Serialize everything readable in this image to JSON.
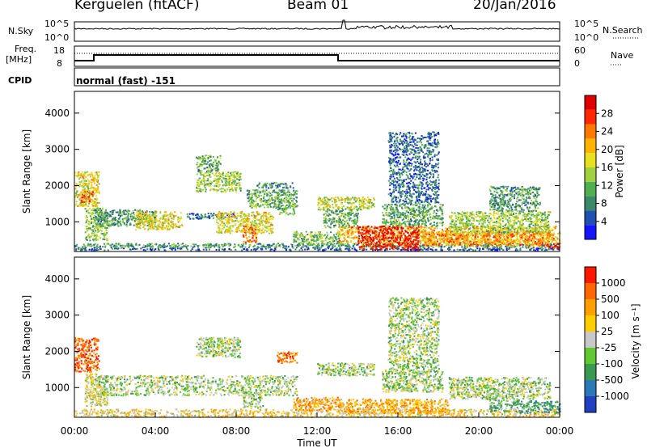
{
  "header": {
    "station": "Kerguelen (fitACF)",
    "beam": "Beam 01",
    "date": "20/Jan/2016"
  },
  "panels": {
    "sky_label": "N.Sky",
    "sky_ticks": [
      "10^5",
      "10^0"
    ],
    "search_label": "N.Search",
    "search_ticks": [
      "10^5",
      "10^0"
    ],
    "freq_label_1": "Freq.",
    "freq_label_2": "[MHz]",
    "freq_ticks": [
      "18",
      "8"
    ],
    "nave_label": "Nave",
    "nave_ticks": [
      "60",
      "0"
    ],
    "cpid_label": "CPID",
    "cpid_text": "normal (fast) -151"
  },
  "chart_data": [
    {
      "type": "heatmap",
      "name": "power",
      "ylabel": "Slant Range [km]",
      "yticks": [
        1000,
        2000,
        3000,
        4000
      ],
      "ylim": [
        180,
        4600
      ],
      "xlim": [
        0,
        24
      ],
      "colorbar": {
        "label": "Power [dB]",
        "ticks": [
          "4",
          "8",
          "12",
          "16",
          "20",
          "24",
          "28"
        ],
        "colors": [
          "#1414ff",
          "#2050b0",
          "#3a8a6a",
          "#50b050",
          "#a0d040",
          "#e8e020",
          "#ffb400",
          "#ff7800",
          "#ff2800",
          "#e00000"
        ]
      },
      "regions": [
        {
          "t0": 0.0,
          "t1": 24.0,
          "r0": 230,
          "r1": 290,
          "level": 0.15
        },
        {
          "t0": 0.0,
          "t1": 24.0,
          "r0": 300,
          "r1": 420,
          "level": 0.3
        },
        {
          "t0": 0.0,
          "t1": 1.2,
          "r0": 1450,
          "r1": 2400,
          "level": 0.55
        },
        {
          "t0": 0.3,
          "t1": 0.9,
          "r0": 1550,
          "r1": 1850,
          "level": 0.8
        },
        {
          "t0": 0.5,
          "t1": 1.6,
          "r0": 500,
          "r1": 1400,
          "level": 0.4
        },
        {
          "t0": 1.0,
          "t1": 4.0,
          "r0": 900,
          "r1": 1350,
          "level": 0.3
        },
        {
          "t0": 3.0,
          "t1": 5.3,
          "r0": 800,
          "r1": 1300,
          "level": 0.55
        },
        {
          "t0": 5.5,
          "t1": 8.0,
          "r0": 1100,
          "r1": 1250,
          "level": 0.2
        },
        {
          "t0": 6.0,
          "t1": 8.2,
          "r0": 1850,
          "r1": 2400,
          "level": 0.45
        },
        {
          "t0": 6.0,
          "t1": 7.2,
          "r0": 2400,
          "r1": 2850,
          "level": 0.35
        },
        {
          "t0": 7.0,
          "t1": 9.8,
          "r0": 700,
          "r1": 1300,
          "level": 0.55
        },
        {
          "t0": 8.3,
          "t1": 9.0,
          "r0": 450,
          "r1": 900,
          "level": 0.75
        },
        {
          "t0": 8.5,
          "t1": 10.2,
          "r0": 1400,
          "r1": 1900,
          "level": 0.35
        },
        {
          "t0": 9.0,
          "t1": 10.8,
          "r0": 1950,
          "r1": 2100,
          "level": 0.25
        },
        {
          "t0": 10.0,
          "t1": 11.0,
          "r0": 1200,
          "r1": 1900,
          "level": 0.35
        },
        {
          "t0": 10.8,
          "t1": 13.2,
          "r0": 380,
          "r1": 750,
          "level": 0.4
        },
        {
          "t0": 12.0,
          "t1": 14.8,
          "r0": 1350,
          "r1": 1700,
          "level": 0.5
        },
        {
          "t0": 12.3,
          "t1": 14.0,
          "r0": 850,
          "r1": 1350,
          "level": 0.35
        },
        {
          "t0": 13.0,
          "t1": 24.0,
          "r0": 420,
          "r1": 900,
          "level": 0.65
        },
        {
          "t0": 14.0,
          "t1": 17.0,
          "r0": 250,
          "r1": 900,
          "level": 0.9
        },
        {
          "t0": 15.2,
          "t1": 18.2,
          "r0": 900,
          "r1": 1500,
          "level": 0.35
        },
        {
          "t0": 15.5,
          "t1": 18.0,
          "r0": 1500,
          "r1": 3500,
          "level": 0.2
        },
        {
          "t0": 17.0,
          "t1": 23.5,
          "r0": 350,
          "r1": 750,
          "level": 0.7
        },
        {
          "t0": 18.5,
          "t1": 23.5,
          "r0": 700,
          "r1": 1300,
          "level": 0.45
        },
        {
          "t0": 20.5,
          "t1": 23.0,
          "r0": 1300,
          "r1": 2000,
          "level": 0.3
        },
        {
          "t0": 23.3,
          "t1": 24.0,
          "r0": 280,
          "r1": 420,
          "level": 0.95
        }
      ]
    },
    {
      "type": "heatmap",
      "name": "velocity",
      "xlabel": "Time UT",
      "ylabel": "Slant Range [km]",
      "yticks": [
        1000,
        2000,
        3000,
        4000
      ],
      "ylim": [
        180,
        4600
      ],
      "xlim": [
        0,
        24
      ],
      "xticks": [
        "00:00",
        "04:00",
        "08:00",
        "12:00",
        "16:00",
        "20:00",
        "00:00"
      ],
      "colorbar": {
        "label": "Velocity [m s⁻¹]",
        "ticks": [
          "1000",
          "500",
          "100",
          "25",
          "-25",
          "-100",
          "-500",
          "-1000"
        ],
        "colors": [
          "#2040c0",
          "#2a78b8",
          "#3a9850",
          "#60c830",
          "#c8c8c8",
          "#ffcc00",
          "#ffa000",
          "#ff6800",
          "#ff1800"
        ]
      },
      "regions": [
        {
          "t0": 0.0,
          "t1": 24.0,
          "r0": 200,
          "r1": 420,
          "level": 0.6
        },
        {
          "t0": 0.0,
          "t1": 1.2,
          "r0": 1450,
          "r1": 2400,
          "level": 0.85
        },
        {
          "t0": 0.5,
          "t1": 1.6,
          "r0": 500,
          "r1": 1400,
          "level": 0.55
        },
        {
          "t0": 1.0,
          "t1": 11.0,
          "r0": 800,
          "r1": 1350,
          "level": 0.45
        },
        {
          "t0": 6.0,
          "t1": 8.2,
          "r0": 1850,
          "r1": 2400,
          "level": 0.45
        },
        {
          "t0": 8.3,
          "t1": 9.3,
          "r0": 450,
          "r1": 900,
          "level": 0.45
        },
        {
          "t0": 10.0,
          "t1": 11.0,
          "r0": 1700,
          "r1": 2000,
          "level": 0.8
        },
        {
          "t0": 10.8,
          "t1": 13.2,
          "r0": 380,
          "r1": 750,
          "level": 0.7
        },
        {
          "t0": 12.0,
          "t1": 14.8,
          "r0": 1350,
          "r1": 1700,
          "level": 0.45
        },
        {
          "t0": 13.0,
          "t1": 18.5,
          "r0": 300,
          "r1": 700,
          "level": 0.7
        },
        {
          "t0": 15.2,
          "t1": 18.2,
          "r0": 900,
          "r1": 1500,
          "level": 0.45
        },
        {
          "t0": 15.5,
          "t1": 18.0,
          "r0": 1500,
          "r1": 3500,
          "level": 0.45
        },
        {
          "t0": 18.5,
          "t1": 23.5,
          "r0": 700,
          "r1": 1300,
          "level": 0.45
        },
        {
          "t0": 20.5,
          "t1": 22.0,
          "r0": 350,
          "r1": 700,
          "level": 0.35
        },
        {
          "t0": 22.0,
          "t1": 24.0,
          "r0": 300,
          "r1": 650,
          "level": 0.3
        }
      ]
    }
  ]
}
